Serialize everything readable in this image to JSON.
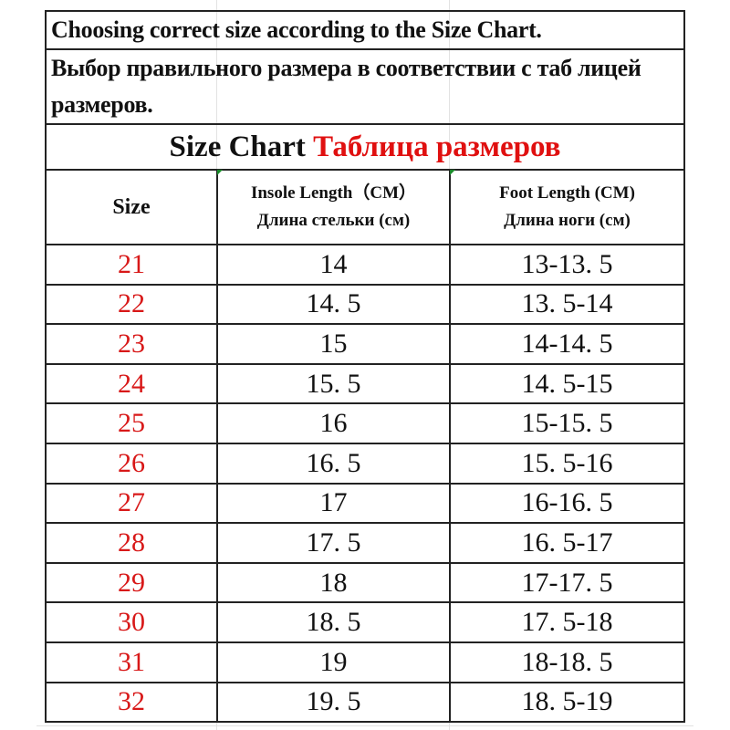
{
  "intro_en": "Choosing correct size according to the Size Chart.",
  "intro_ru": "Выбор правильного размера в соответствии с таб лицей размеров.",
  "title_en": "Size Chart",
  "title_ru": "Таблица размеров",
  "colors": {
    "accent": "#e01010",
    "text": "#111111"
  },
  "headers": {
    "size": "Size",
    "insole_en": "Insole Length（CM）",
    "insole_ru": "Длина стельки (см)",
    "foot_en": "Foot Length (CM)",
    "foot_ru": "Длина ноги (см)"
  },
  "rows": [
    {
      "size": "21",
      "insole": "14",
      "foot": "13-13. 5"
    },
    {
      "size": "22",
      "insole": "14. 5",
      "foot": "13. 5-14"
    },
    {
      "size": "23",
      "insole": "15",
      "foot": "14-14. 5"
    },
    {
      "size": "24",
      "insole": "15. 5",
      "foot": "14. 5-15"
    },
    {
      "size": "25",
      "insole": "16",
      "foot": "15-15. 5"
    },
    {
      "size": "26",
      "insole": "16. 5",
      "foot": "15. 5-16"
    },
    {
      "size": "27",
      "insole": "17",
      "foot": "16-16. 5"
    },
    {
      "size": "28",
      "insole": "17. 5",
      "foot": "16. 5-17"
    },
    {
      "size": "29",
      "insole": "18",
      "foot": "17-17. 5"
    },
    {
      "size": "30",
      "insole": "18. 5",
      "foot": "17. 5-18"
    },
    {
      "size": "31",
      "insole": "19",
      "foot": "18-18. 5"
    },
    {
      "size": "32",
      "insole": "19. 5",
      "foot": "18. 5-19"
    }
  ]
}
